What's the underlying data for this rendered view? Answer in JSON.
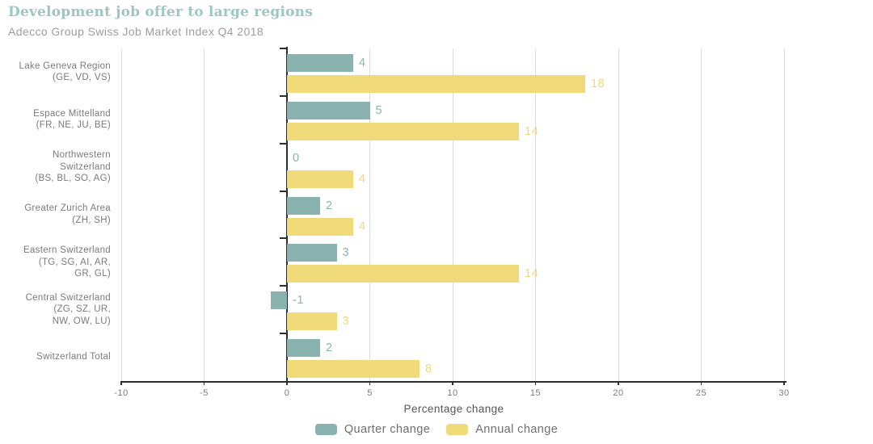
{
  "header": {
    "title": "Development job offer to large regions",
    "subtitle": "Adecco Group Swiss Job Market Index Q4 2018"
  },
  "palette": {
    "title_teal": "#9bc7c3",
    "subtitle_gray": "#9d9d9d",
    "axis_dark": "#2e2e2e",
    "grid_gray": "#dcdcdc",
    "tick_text_gray": "#7c7c7c",
    "category_text_gray": "#7a7a7a",
    "xlabel_gray": "#555555",
    "legend_text_gray": "#6e6e6e"
  },
  "chart_data": {
    "type": "bar",
    "orientation": "horizontal",
    "title": "Development job offer to large regions",
    "subtitle": "Adecco Group Swiss Job Market Index Q4 2018",
    "xlabel": "Percentage change",
    "xlim": [
      -10,
      30
    ],
    "x_ticks": [
      -10,
      -5,
      0,
      5,
      10,
      15,
      20,
      25,
      30
    ],
    "grid": true,
    "legend_position": "bottom",
    "value_labels": true,
    "categories": [
      {
        "name": "Lake Geneva Region (GE, VD, VS)",
        "label_lines": [
          "Lake Geneva Region",
          "(GE, VD, VS)"
        ]
      },
      {
        "name": "Espace Mittelland (FR, NE, JU, BE)",
        "label_lines": [
          "Espace Mittelland",
          "(FR, NE, JU, BE)"
        ]
      },
      {
        "name": "Northwestern Switzerland (BS, BL, SO, AG)",
        "label_lines": [
          "Northwestern Switzerland",
          "(BS, BL, SO, AG)"
        ]
      },
      {
        "name": "Greater Zurich Area (ZH, SH)",
        "label_lines": [
          "Greater Zurich Area",
          "(ZH, SH)"
        ]
      },
      {
        "name": "Eastern Switzerland (TG, SG, AI, AR, GR, GL)",
        "label_lines": [
          "Eastern Switzerland",
          "(TG, SG, AI, AR,",
          "GR, GL)"
        ]
      },
      {
        "name": "Central Switzerland (ZG, SZ, UR, NW, OW, LU)",
        "label_lines": [
          "Central Switzerland",
          "(ZG, SZ, UR,",
          "NW, OW, LU)"
        ]
      },
      {
        "name": "Switzerland Total",
        "label_lines": [
          "Switzerland Total"
        ]
      }
    ],
    "series": [
      {
        "name": "Quarter change",
        "color": "#8ab3b0",
        "values": [
          4,
          5,
          0,
          2,
          3,
          -1,
          2
        ]
      },
      {
        "name": "Annual change",
        "color": "#f0da79",
        "values": [
          18,
          14,
          4,
          4,
          14,
          3,
          8
        ]
      }
    ]
  },
  "legend": {
    "items": [
      {
        "label": "Quarter change"
      },
      {
        "label": "Annual change"
      }
    ]
  }
}
